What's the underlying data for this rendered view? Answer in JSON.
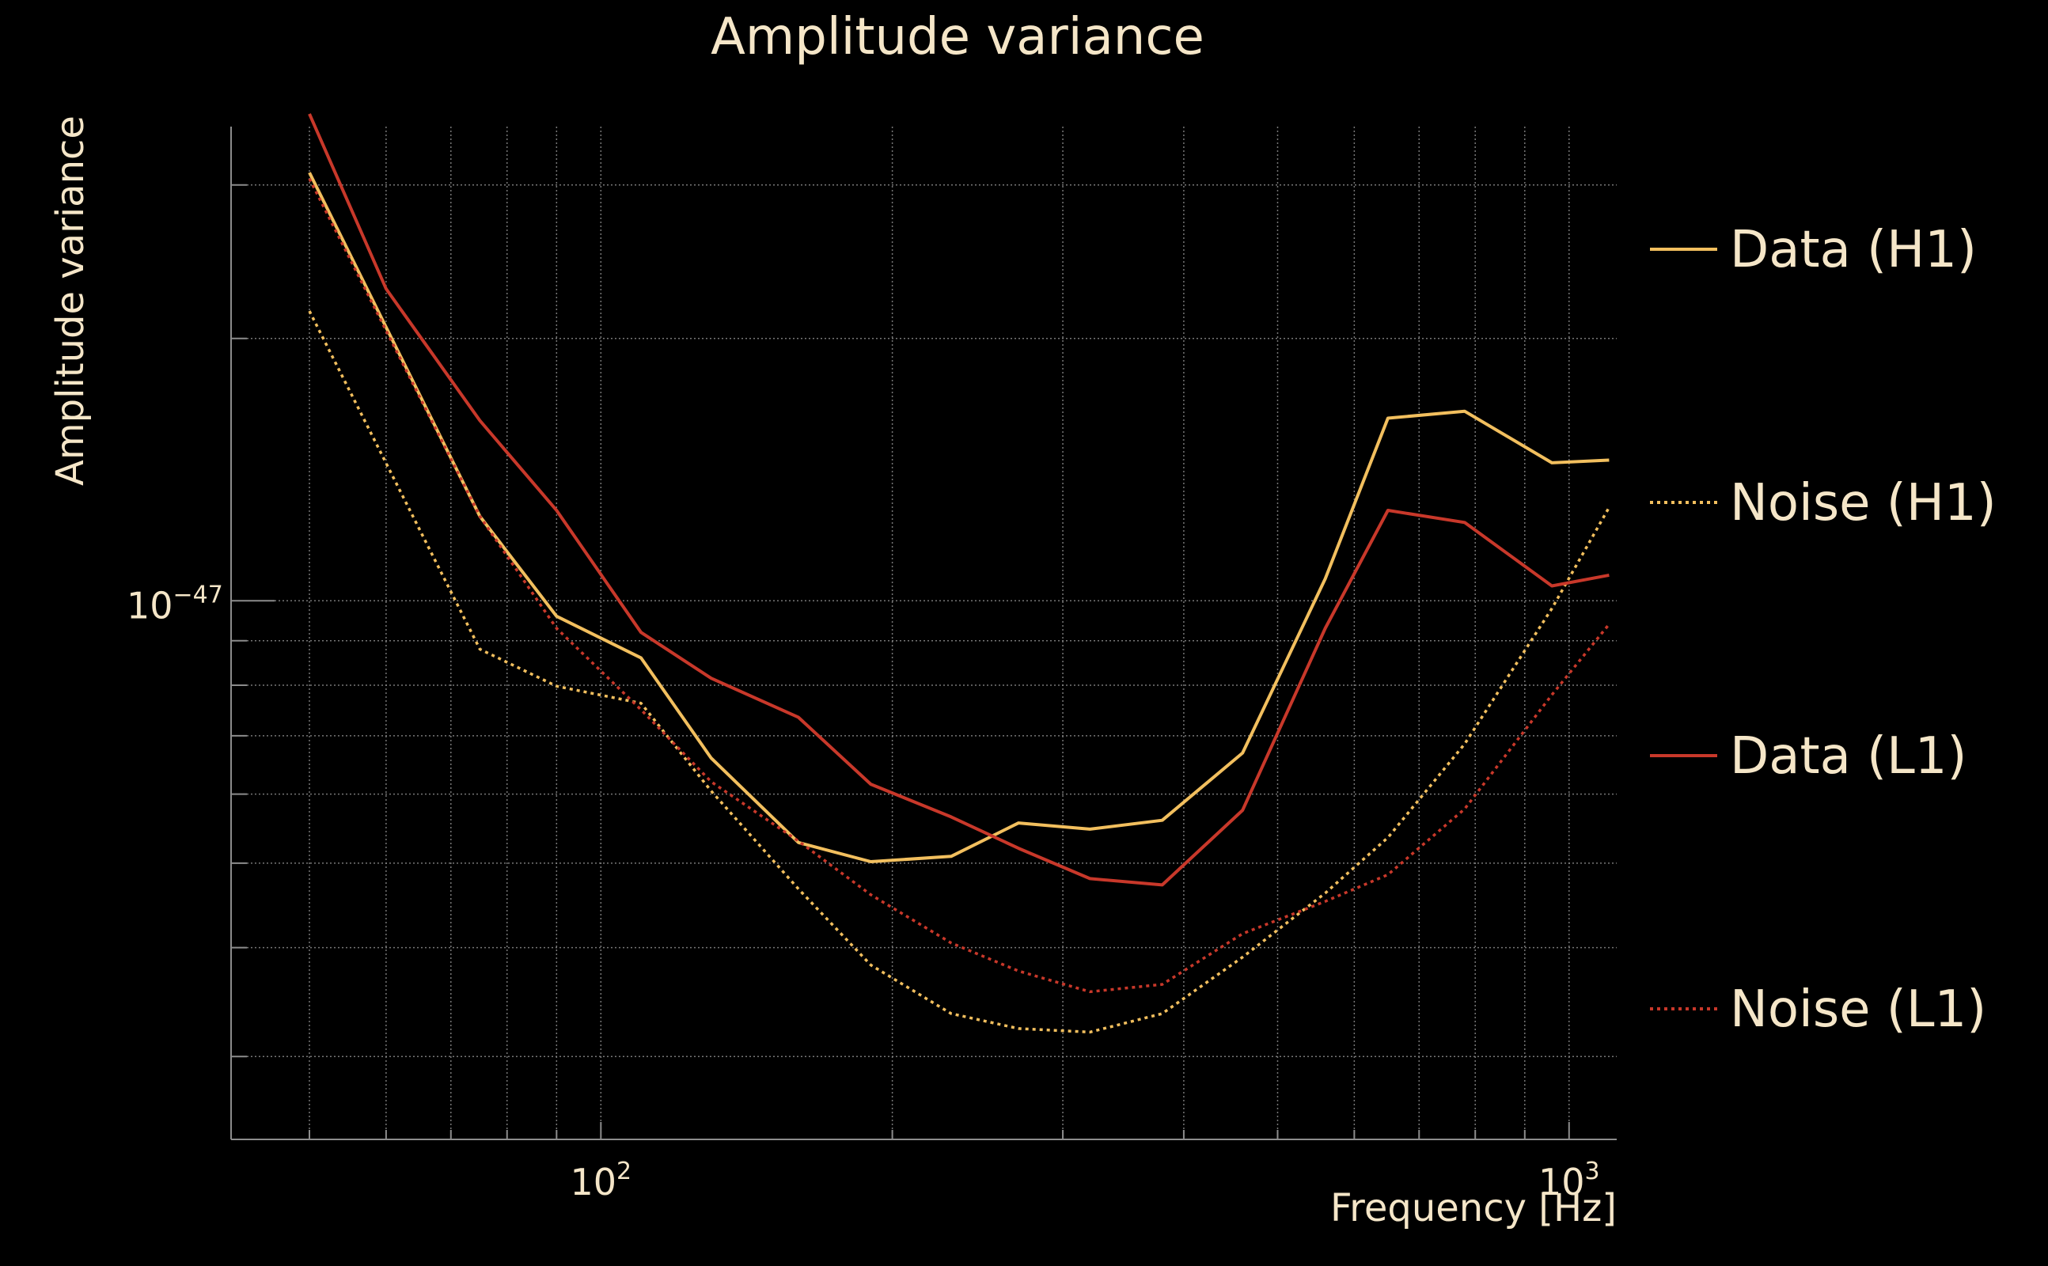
{
  "chart_data": {
    "type": "line",
    "title": "Amplitude variance",
    "xlabel": "Frequency [Hz]",
    "ylabel": "Amplitude variance",
    "x_scale": "log",
    "y_scale": "log",
    "xlim": [
      41.5,
      1120
    ],
    "ylim": [
      2.41e-48,
      3.5e-47
    ],
    "x_ticks": [
      {
        "value": 100,
        "base": "10",
        "exp": "2"
      },
      {
        "value": 1000,
        "base": "10",
        "exp": "3"
      }
    ],
    "y_ticks": [
      {
        "value": 1e-47,
        "base": "10",
        "exp": "−47"
      }
    ],
    "grid": true,
    "legend_position": "right",
    "colors": {
      "background": "#000000",
      "text": "#f5e6c8",
      "grid": "#8c8c8c",
      "h1": "#f2bf5e",
      "l1": "#c8382a"
    },
    "series": [
      {
        "name": "Data (H1)",
        "style": "solid",
        "color_key": "h1",
        "x": [
          50,
          75,
          90,
          110,
          130,
          160,
          190,
          230,
          270,
          320,
          380,
          460,
          560,
          650,
          780,
          960,
          1100
        ],
        "y": [
          3.1e-47,
          1.25e-47,
          9.6e-48,
          8.6e-48,
          6.6e-48,
          5.28e-48,
          5.02e-48,
          5.09e-48,
          5.56e-48,
          5.47e-48,
          5.6e-48,
          6.69e-48,
          1.06e-47,
          1.62e-47,
          1.65e-47,
          1.44e-47,
          1.45e-47
        ]
      },
      {
        "name": "Noise (H1)",
        "style": "dotted",
        "color_key": "h1",
        "x": [
          50,
          75,
          90,
          110,
          130,
          160,
          190,
          230,
          270,
          320,
          380,
          460,
          560,
          650,
          780,
          960,
          1100
        ],
        "y": [
          2.15e-47,
          8.8e-48,
          7.98e-48,
          7.63e-48,
          6.05e-48,
          4.67e-48,
          3.82e-48,
          3.36e-48,
          3.23e-48,
          3.2e-48,
          3.36e-48,
          3.9e-48,
          4.62e-48,
          5.35e-48,
          6.85e-48,
          9.8e-48,
          1.28e-47
        ]
      },
      {
        "name": "Data (L1)",
        "style": "solid",
        "color_key": "l1",
        "x": [
          50,
          60,
          75,
          90,
          110,
          130,
          160,
          190,
          230,
          270,
          320,
          380,
          460,
          560,
          650,
          780,
          960,
          1100
        ],
        "y": [
          3.62e-47,
          2.28e-47,
          1.61e-47,
          1.27e-47,
          9.2e-48,
          8.15e-48,
          7.35e-48,
          6.16e-48,
          5.65e-48,
          5.2e-48,
          4.8e-48,
          4.72e-48,
          5.75e-48,
          9.3e-48,
          1.27e-47,
          1.23e-47,
          1.04e-47,
          1.07e-47
        ]
      },
      {
        "name": "Noise (L1)",
        "style": "dotted",
        "color_key": "l1",
        "x": [
          50,
          75,
          90,
          110,
          130,
          160,
          190,
          230,
          270,
          320,
          380,
          460,
          560,
          650,
          780,
          960,
          1100
        ],
        "y": [
          3.05e-47,
          1.25e-47,
          9.3e-48,
          7.5e-48,
          6.2e-48,
          5.3e-48,
          4.6e-48,
          4.05e-48,
          3.76e-48,
          3.56e-48,
          3.63e-48,
          4.15e-48,
          4.52e-48,
          4.85e-48,
          5.77e-48,
          7.8e-48,
          9.4e-48
        ]
      }
    ]
  }
}
